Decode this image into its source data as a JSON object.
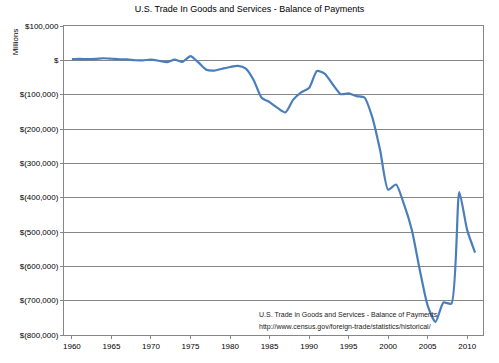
{
  "chart_data": {
    "type": "line",
    "title": "U.S. Trade In Goods and Services - Balance of Payments",
    "ylabel": "Millions",
    "annotations": [
      "U.S. Trade in Goods and Services - Balance of Payments",
      "http://www.census.gov/foreign-trade/statistics/historical/"
    ],
    "x": [
      1960,
      1961,
      1962,
      1963,
      1964,
      1965,
      1966,
      1967,
      1968,
      1969,
      1970,
      1971,
      1972,
      1973,
      1974,
      1975,
      1976,
      1977,
      1978,
      1979,
      1980,
      1981,
      1982,
      1983,
      1984,
      1985,
      1986,
      1987,
      1988,
      1989,
      1990,
      1991,
      1992,
      1993,
      1994,
      1995,
      1996,
      1997,
      1998,
      1999,
      2000,
      2001,
      2002,
      2003,
      2004,
      2005,
      2006,
      2007,
      2008,
      2009,
      2010,
      2011
    ],
    "values": [
      3508,
      4195,
      3370,
      4210,
      6022,
      4664,
      2939,
      2604,
      250,
      91,
      2254,
      -1302,
      -5443,
      1900,
      -4293,
      12404,
      -6082,
      -27246,
      -29763,
      -24565,
      -19407,
      -16172,
      -24156,
      -57767,
      -109072,
      -121880,
      -138538,
      -151684,
      -114566,
      -93141,
      -80864,
      -31135,
      -39212,
      -70311,
      -98493,
      -96384,
      -104065,
      -108273,
      -166140,
      -263160,
      -376749,
      -361771,
      -418955,
      -493890,
      -609883,
      -714245,
      -761716,
      -705375,
      -708726,
      -383774,
      -494658,
      -559880
    ],
    "color": "#4a7ebb",
    "xlim": [
      1959,
      2012
    ],
    "xticks": [
      1960,
      1965,
      1970,
      1975,
      1980,
      1985,
      1990,
      1995,
      2000,
      2005,
      2010
    ],
    "ylim": [
      -800000,
      100000
    ],
    "yticks": [
      {
        "value": 100000,
        "label": "$100,000"
      },
      {
        "value": 0,
        "label": "$"
      },
      {
        "value": -100000,
        "label": "$(100,000)"
      },
      {
        "value": -200000,
        "label": "$(200,000)"
      },
      {
        "value": -300000,
        "label": "$(300,000)"
      },
      {
        "value": -400000,
        "label": "$(400,000)"
      },
      {
        "value": -500000,
        "label": "$(500,000)"
      },
      {
        "value": -600000,
        "label": "$(600,000)"
      },
      {
        "value": -700000,
        "label": "$(700,000)"
      },
      {
        "value": -800000,
        "label": "$(800,000)"
      }
    ],
    "grid": true
  }
}
